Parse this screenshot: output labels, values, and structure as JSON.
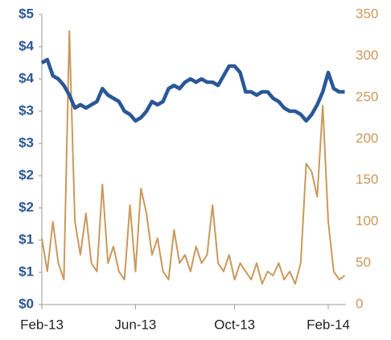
{
  "chart_data": {
    "type": "line",
    "categories": [
      "Feb-13",
      null,
      null,
      null,
      null,
      null,
      null,
      null,
      null,
      null,
      null,
      null,
      null,
      null,
      null,
      null,
      null,
      "Jun-13",
      null,
      null,
      null,
      null,
      null,
      null,
      null,
      null,
      null,
      null,
      null,
      null,
      null,
      null,
      null,
      null,
      null,
      "Oct-13",
      null,
      null,
      null,
      null,
      null,
      null,
      null,
      null,
      null,
      null,
      null,
      null,
      null,
      null,
      null,
      null,
      "Feb-14",
      null,
      null,
      null
    ],
    "series": [
      {
        "color": "#2b5797",
        "axis": "y",
        "values": [
          3.75,
          3.8,
          3.55,
          3.5,
          3.4,
          3.25,
          3.05,
          3.1,
          3.05,
          3.1,
          3.15,
          3.35,
          3.25,
          3.2,
          3.15,
          3.0,
          2.95,
          2.85,
          2.9,
          3.0,
          3.15,
          3.1,
          3.15,
          3.35,
          3.4,
          3.35,
          3.45,
          3.5,
          3.45,
          3.5,
          3.45,
          3.45,
          3.4,
          3.55,
          3.7,
          3.7,
          3.6,
          3.3,
          3.3,
          3.25,
          3.3,
          3.3,
          3.2,
          3.15,
          3.05,
          3.0,
          3.0,
          2.95,
          2.85,
          2.95,
          3.1,
          3.3,
          3.6,
          3.35,
          3.3,
          3.3
        ]
      },
      {
        "color": "#c9995c",
        "axis": "y2",
        "values": [
          80,
          40,
          100,
          50,
          30,
          330,
          100,
          60,
          110,
          50,
          40,
          145,
          50,
          70,
          40,
          30,
          120,
          40,
          140,
          110,
          60,
          80,
          40,
          30,
          90,
          50,
          60,
          40,
          70,
          50,
          60,
          120,
          50,
          40,
          60,
          30,
          50,
          40,
          30,
          50,
          25,
          40,
          35,
          50,
          30,
          40,
          25,
          50,
          170,
          160,
          130,
          240,
          100,
          40,
          30,
          35
        ]
      }
    ],
    "ylim": [
      0,
      4.5
    ],
    "yticks": [
      {
        "value": 0,
        "label": "$0"
      },
      {
        "value": 0.5,
        "label": "$1"
      },
      {
        "value": 1,
        "label": "$1"
      },
      {
        "value": 1.5,
        "label": "$2"
      },
      {
        "value": 2,
        "label": "$2"
      },
      {
        "value": 2.5,
        "label": "$3"
      },
      {
        "value": 3,
        "label": "$3"
      },
      {
        "value": 3.5,
        "label": "$4"
      },
      {
        "value": 4,
        "label": "$4"
      },
      {
        "value": 4.5,
        "label": "$5"
      }
    ],
    "y2lim": [
      0,
      350
    ],
    "y2ticks": [
      0,
      50,
      100,
      150,
      200,
      250,
      300,
      350
    ],
    "grid": false
  }
}
